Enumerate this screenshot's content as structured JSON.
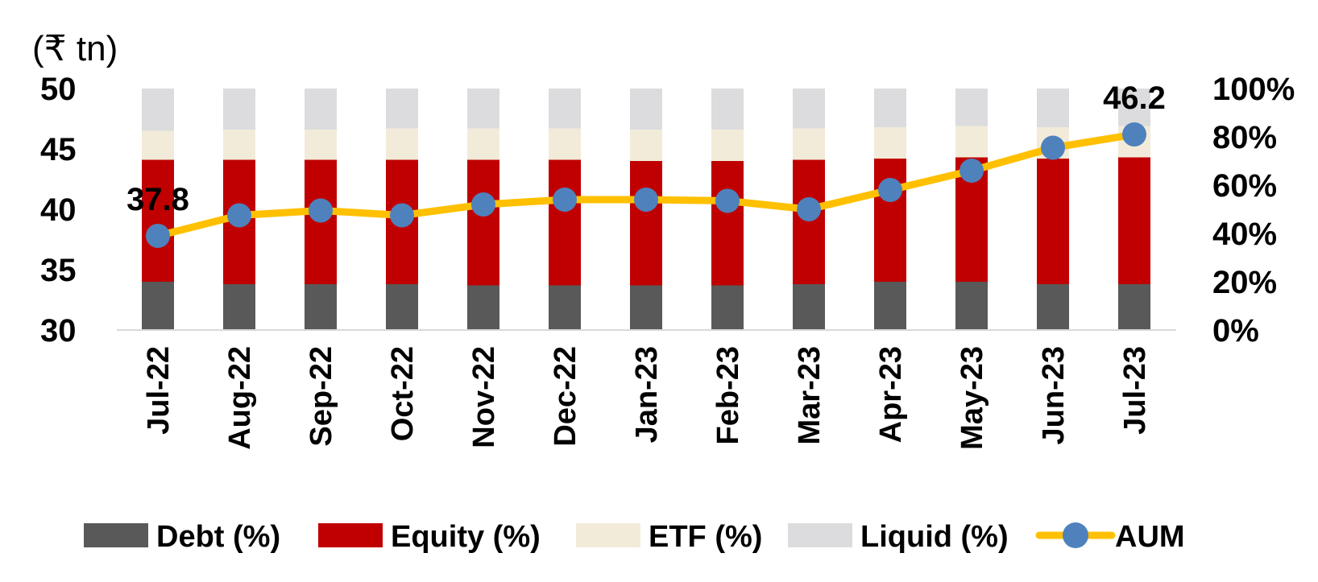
{
  "chart_data": {
    "type": "bar",
    "stacked": true,
    "categories": [
      "Jul-22",
      "Aug-22",
      "Sep-22",
      "Oct-22",
      "Nov-22",
      "Dec-22",
      "Jan-23",
      "Feb-23",
      "Mar-23",
      "Apr-23",
      "May-23",
      "Jun-23",
      "Jul-23"
    ],
    "unit_label": "(₹ tn)",
    "left_axis": {
      "min": 30,
      "max": 50,
      "ticks": [
        "50",
        "45",
        "40",
        "35",
        "30"
      ]
    },
    "right_axis": {
      "min": 0,
      "max": 100,
      "ticks": [
        "100%",
        "80%",
        "60%",
        "40%",
        "20%",
        "0%"
      ]
    },
    "series": [
      {
        "name": "Debt (%)",
        "color": "#595959",
        "axis": "right",
        "values": [
          20,
          19,
          19,
          19,
          18.5,
          18.5,
          18.5,
          18.5,
          19,
          20,
          20,
          19,
          19
        ]
      },
      {
        "name": "Equity (%)",
        "color": "#C00000",
        "axis": "right",
        "values": [
          50.5,
          51.5,
          51.5,
          51.5,
          52,
          52,
          51.5,
          51.5,
          51.5,
          51,
          51.5,
          52,
          52.5
        ]
      },
      {
        "name": "ETF (%)",
        "color": "#F2EBD9",
        "axis": "right",
        "values": [
          12,
          12.5,
          12.5,
          13,
          13,
          13,
          13,
          13,
          13,
          13,
          13,
          13,
          13
        ]
      },
      {
        "name": "Liquid (%)",
        "color": "#DCDCDE",
        "axis": "right",
        "values": [
          17.5,
          17,
          17,
          16.5,
          16.5,
          16.5,
          17,
          17,
          16.5,
          16,
          15.5,
          16,
          15.5
        ]
      }
    ],
    "line": {
      "name": "AUM",
      "axis": "left",
      "line_color": "#FFC000",
      "marker_color": "#4F81BD",
      "values": [
        37.8,
        39.5,
        39.9,
        39.5,
        40.4,
        40.8,
        40.8,
        40.7,
        40.0,
        41.6,
        43.2,
        45.1,
        46.2
      ]
    },
    "data_labels": [
      {
        "index": 0,
        "text": "37.8"
      },
      {
        "index": 12,
        "text": "46.2"
      }
    ],
    "legend_position": "bottom",
    "grid": false
  }
}
